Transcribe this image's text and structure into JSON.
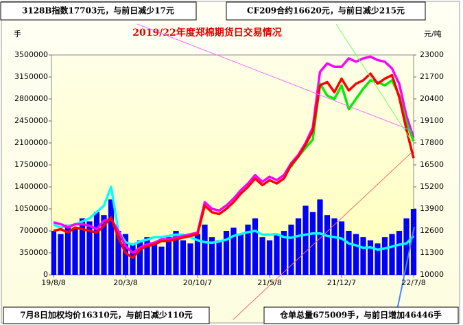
{
  "chart_data": {
    "type": "combo",
    "title": "2019/22年度郑棉期货日交易情况",
    "y_label": "手",
    "y2_label": "元/吨",
    "annotations": [
      "3128B指数17703元，与前日减少17元",
      "CF209合约16620元，与前日减少215元",
      "7月8日加权均价16310元，与前日减少110元",
      "仓单总量675009手，与前日增加46446手"
    ],
    "x": [
      0,
      1,
      2,
      3,
      4,
      5,
      6,
      7,
      8,
      9,
      10,
      11,
      12,
      13,
      14,
      15,
      16,
      17,
      18,
      19,
      20,
      21,
      22,
      23,
      24,
      25,
      26,
      27,
      28,
      29,
      30,
      31,
      32,
      33,
      34,
      35,
      36,
      37,
      38,
      39,
      40,
      41,
      42,
      43,
      44,
      45,
      46,
      47,
      48,
      49,
      50
    ],
    "xlim": [
      0,
      50
    ],
    "xticks": [
      {
        "value": 0,
        "label": "19/8/8"
      },
      {
        "value": 10,
        "label": "20/3/8"
      },
      {
        "value": 20,
        "label": "20/10/7"
      },
      {
        "value": 30,
        "label": "21/5/8"
      },
      {
        "value": 40,
        "label": "21/12/7"
      },
      {
        "value": 50,
        "label": "22/7/8"
      }
    ],
    "ylim": [
      0,
      3500000
    ],
    "yticks": [
      0,
      350000,
      700000,
      1050000,
      1400000,
      1750000,
      2100000,
      2450000,
      2800000,
      3150000,
      3500000
    ],
    "y2lim": [
      10000,
      23000
    ],
    "y2ticks": [
      10000,
      11300,
      12600,
      13900,
      15200,
      16500,
      17800,
      19100,
      20400,
      21700,
      23000
    ],
    "grid": false,
    "series": [
      {
        "type": "bar",
        "color": "#0000ff",
        "values": [
          700000,
          650000,
          800000,
          750000,
          900000,
          850000,
          1000000,
          950000,
          1200000,
          700000,
          650000,
          500000,
          550000,
          600000,
          500000,
          450000,
          600000,
          700000,
          550000,
          500000,
          650000,
          800000,
          600000,
          550000,
          700000,
          750000,
          650000,
          800000,
          900000,
          600000,
          550000,
          650000,
          700000,
          800000,
          900000,
          1100000,
          1000000,
          1200000,
          950000,
          900000,
          850000,
          700000,
          650000,
          600000,
          550000,
          500000,
          600000,
          650000,
          700000,
          900000,
          1050000
        ]
      },
      {
        "type": "line",
        "color": "#00ffff",
        "values": [
          800000,
          750000,
          780000,
          800000,
          850000,
          900000,
          1000000,
          1100000,
          1400000,
          700000,
          520000,
          480000,
          530000,
          560000,
          600000,
          600000,
          620000,
          640000,
          640000,
          600000,
          550000,
          520000,
          510000,
          530000,
          560000,
          620000,
          650000,
          680000,
          700000,
          640000,
          640000,
          650000,
          600000,
          590000,
          620000,
          640000,
          660000,
          660000,
          620000,
          600000,
          580000,
          500000,
          470000,
          430000,
          440000,
          400000,
          420000,
          450000,
          480000,
          500000,
          620000
        ]
      },
      {
        "type": "line",
        "axis": "y2",
        "color": "#ff00ff",
        "values": [
          13100,
          13000,
          12800,
          13000,
          13000,
          12900,
          12700,
          13200,
          13300,
          12600,
          11700,
          11300,
          11600,
          11800,
          11900,
          12100,
          12100,
          12200,
          12300,
          12400,
          12500,
          14300,
          13900,
          13800,
          14100,
          14500,
          15000,
          15400,
          15900,
          15500,
          15800,
          15600,
          15900,
          16600,
          17100,
          17800,
          18700,
          22000,
          22500,
          22300,
          22300,
          22800,
          22600,
          22800,
          22900,
          22700,
          22600,
          22200,
          21300,
          19400,
          18100
        ]
      },
      {
        "type": "line",
        "axis": "y2",
        "color": "#00ee00",
        "values": [
          null,
          null,
          null,
          null,
          null,
          null,
          null,
          null,
          null,
          null,
          null,
          null,
          null,
          null,
          null,
          null,
          null,
          null,
          null,
          null,
          null,
          null,
          null,
          null,
          null,
          null,
          null,
          null,
          null,
          null,
          null,
          null,
          null,
          16400,
          17000,
          17500,
          18000,
          21300,
          20600,
          20400,
          21200,
          19800,
          20400,
          21000,
          21500,
          21400,
          21200,
          21500,
          20600,
          19000,
          17900
        ]
      },
      {
        "type": "line",
        "axis": "y2",
        "color": "#ff0000",
        "values": [
          12600,
          12700,
          12500,
          12800,
          12700,
          12600,
          12500,
          12900,
          13400,
          12200,
          11300,
          11000,
          11500,
          11700,
          11800,
          12000,
          12000,
          12100,
          12200,
          12300,
          12400,
          14100,
          13700,
          13600,
          13900,
          14300,
          14800,
          15200,
          15700,
          15300,
          15600,
          15400,
          15700,
          16500,
          17000,
          17700,
          18500,
          21200,
          21400,
          20800,
          21600,
          20900,
          21300,
          21500,
          21900,
          21300,
          21600,
          21800,
          20500,
          18600,
          16900
        ]
      }
    ]
  }
}
